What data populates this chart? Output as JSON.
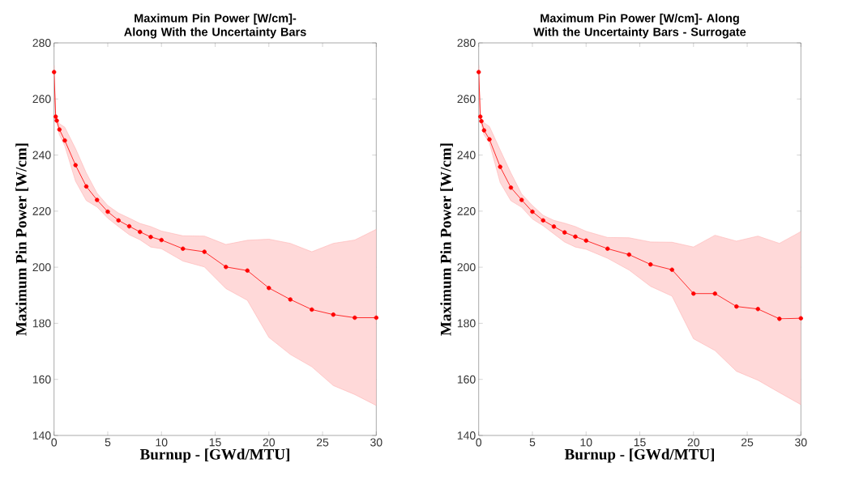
{
  "chart_data": [
    {
      "type": "line",
      "title": "Maximum Pin Power [W/cm]- Along With the Uncertainty Bars",
      "xlabel": "Burnup - [GWd/MTU]",
      "ylabel": "Maximum Pin Power [W/cm]",
      "x": [
        0,
        0.15,
        0.25,
        0.5,
        1,
        2,
        3,
        4,
        5,
        6,
        7,
        8,
        9,
        10,
        12,
        14,
        16,
        18,
        20,
        22,
        24,
        26,
        28,
        30
      ],
      "series": [
        {
          "color": "#ff0000",
          "values": [
            269.6,
            253.7,
            252.3,
            249.1,
            245.2,
            236.4,
            228.8,
            224.0,
            219.8,
            216.7,
            214.6,
            212.6,
            210.8,
            209.7,
            206.6,
            205.5,
            200.1,
            198.8,
            192.6,
            188.5,
            184.9,
            183.1,
            182.0,
            182.0
          ],
          "upper": [
            272.0,
            254.5,
            253.2,
            251.2,
            249.9,
            242.3,
            233.6,
            226.4,
            222.0,
            219.3,
            217.5,
            215.6,
            214.5,
            212.9,
            211.2,
            211.1,
            208.1,
            209.6,
            210.0,
            208.5,
            205.5,
            208.5,
            209.7,
            213.5
          ],
          "lower": [
            268.0,
            253.0,
            251.5,
            247.2,
            243.3,
            230.7,
            223.8,
            221.5,
            217.5,
            214.5,
            211.6,
            209.8,
            207.2,
            206.6,
            202.2,
            200.1,
            192.4,
            188.2,
            175.0,
            168.9,
            164.5,
            157.8,
            154.6,
            150.7
          ]
        }
      ],
      "xlim": [
        0,
        30
      ],
      "ylim": [
        140,
        280
      ],
      "xticks": [
        0,
        5,
        10,
        15,
        20,
        25,
        30
      ],
      "yticks": [
        140,
        160,
        180,
        200,
        220,
        240,
        260,
        280
      ],
      "marker": "circle",
      "line_style": "solid",
      "grid": false
    },
    {
      "type": "line",
      "title": "Maximum Pin Power [W/cm]- Along With the Uncertainty Bars -  Surrogate",
      "xlabel": "Burnup - [GWd/MTU]",
      "ylabel": "Maximum Pin Power [W/cm]",
      "x": [
        0,
        0.15,
        0.25,
        0.5,
        1,
        2,
        3,
        4,
        5,
        6,
        7,
        8,
        9,
        10,
        12,
        14,
        16,
        18,
        20,
        22,
        24,
        26,
        28,
        30
      ],
      "series": [
        {
          "color": "#ff0000",
          "values": [
            269.6,
            253.7,
            252.1,
            248.8,
            245.6,
            235.8,
            228.4,
            224.0,
            219.8,
            216.7,
            214.5,
            212.4,
            210.9,
            209.5,
            206.6,
            204.5,
            201.0,
            199.1,
            190.6,
            190.6,
            186.0,
            185.1,
            181.6,
            181.8
          ],
          "upper": [
            272.0,
            254.5,
            253.0,
            251.5,
            250.2,
            241.8,
            233.6,
            226.1,
            222.0,
            218.5,
            216.7,
            215.7,
            214.5,
            212.8,
            210.6,
            210.5,
            209.0,
            208.9,
            207.2,
            211.4,
            209.3,
            211.1,
            208.5,
            212.7
          ],
          "lower": [
            268.0,
            253.0,
            251.0,
            247.2,
            244.3,
            230.2,
            223.7,
            221.4,
            217.2,
            214.8,
            211.9,
            209.0,
            207.2,
            206.4,
            203.2,
            199.0,
            193.2,
            189.7,
            174.5,
            170.3,
            162.9,
            159.7,
            155.3,
            151.0
          ]
        }
      ],
      "xlim": [
        0,
        30
      ],
      "ylim": [
        140,
        280
      ],
      "xticks": [
        0,
        5,
        10,
        15,
        20,
        25,
        30
      ],
      "yticks": [
        140,
        160,
        180,
        200,
        220,
        240,
        260,
        280
      ],
      "marker": "circle",
      "line_style": "solid",
      "grid": false
    }
  ]
}
